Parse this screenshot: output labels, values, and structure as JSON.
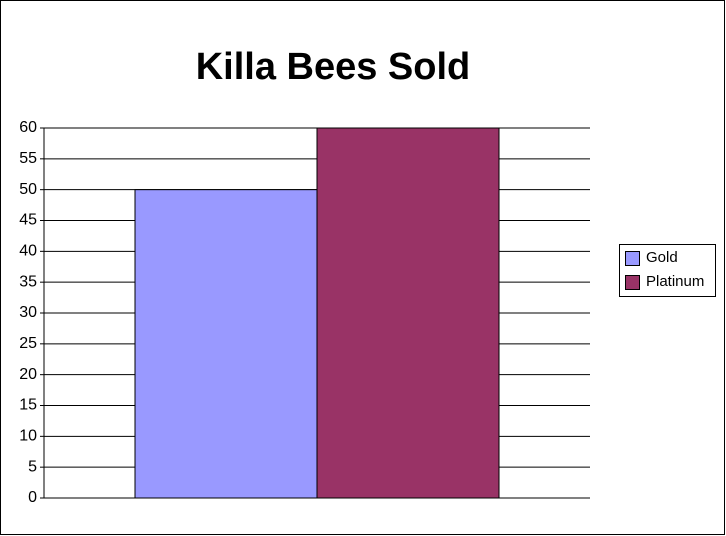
{
  "chart_data": {
    "type": "bar",
    "title": "Killa Bees Sold",
    "categories": [
      null
    ],
    "series": [
      {
        "name": "Gold",
        "color": "#9999ff",
        "values": [
          50
        ]
      },
      {
        "name": "Platinum",
        "color": "#993366",
        "values": [
          60
        ]
      }
    ],
    "ylim": [
      0,
      60
    ],
    "yticks": [
      0,
      5,
      10,
      15,
      20,
      25,
      30,
      35,
      40,
      45,
      50,
      55,
      60
    ],
    "grid": true,
    "legend": "right"
  }
}
